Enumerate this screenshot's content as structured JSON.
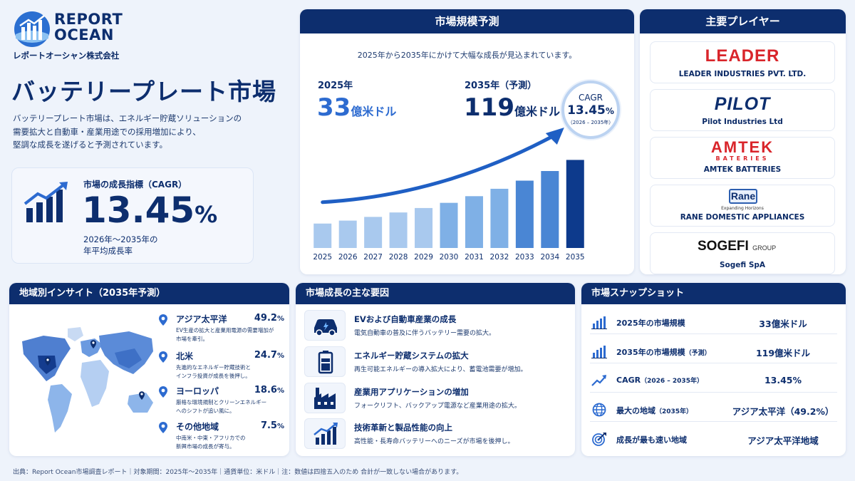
{
  "brand": {
    "name_line1": "REPORT",
    "name_line2": "OCEAN",
    "company": "レポートオーシャン株式会社"
  },
  "title": "バッテリープレート市場",
  "description": "バッテリープレート市場は、エネルギー貯蔵ソリューションの\n需要拡大と自動車・産業用途での採用増加により、\n堅調な成長を遂げると予測されています。",
  "cagr_box": {
    "label": "市場の成長指標（CAGR）",
    "value": "13.45",
    "unit": "%",
    "note": "2026年～2035年の\n年平均成長率"
  },
  "forecast": {
    "header": "市場規模予測",
    "subtitle": "2025年から2035年にかけて大幅な成長が見込まれています。",
    "start_year": "2025年",
    "start_value": "33",
    "start_unit": "億米ドル",
    "end_year": "2035年（予測）",
    "end_value": "119",
    "end_unit": "億米ドル",
    "cagr_label": "CAGR",
    "cagr_value": "13.45",
    "cagr_unit": "%",
    "cagr_range": "（2026 – 2035年）"
  },
  "chart_data": {
    "type": "bar",
    "title": "",
    "xlabel": "",
    "ylabel": "",
    "categories": [
      "2025",
      "2026",
      "2027",
      "2028",
      "2029",
      "2030",
      "2031",
      "2032",
      "2033",
      "2034",
      "2035"
    ],
    "values": [
      33,
      37,
      42,
      48,
      54,
      61,
      70,
      80,
      91,
      104,
      119
    ],
    "ylim": [
      0,
      130
    ],
    "grid": false,
    "colors": {
      "light": "#a9c9ee",
      "mid": "#7fb0e6",
      "dark": "#4a86d4",
      "highlight": "#0d3a8c",
      "arrow": "#1f5fc4"
    }
  },
  "players": {
    "header": "主要プレイヤー",
    "items": [
      {
        "logo_text": "LEADER",
        "name": "LEADER INDUSTRIES PVT. LTD."
      },
      {
        "logo_text": "PILOT",
        "name": "Pilot Industries Ltd"
      },
      {
        "logo_text": "AMTEK",
        "logo_sub": "BATERIES",
        "name": "AMTEK BATTERIES"
      },
      {
        "logo_text": "Rane",
        "logo_sub": "Expanding Horizons",
        "name": "RANE DOMESTIC APPLIANCES"
      },
      {
        "logo_text": "SOGEFI",
        "logo_sub": "GROUP",
        "name": "Sogefi SpA"
      }
    ]
  },
  "regional": {
    "header": "地域別インサイト（2035年予測）",
    "items": [
      {
        "name": "アジア太平洋",
        "value": "49.2",
        "unit": "%",
        "desc": "EV生産の拡大と産業用電源の需要増加が\n市場を牽引。"
      },
      {
        "name": "北米",
        "value": "24.7",
        "unit": "%",
        "desc": "先進的なエネルギー貯蔵技術と\nインフラ投資が成長を後押し。"
      },
      {
        "name": "ヨーロッパ",
        "value": "18.6",
        "unit": "%",
        "desc": "厳格な環境規制とクリーンエネルギー\nへのシフトが追い風に。"
      },
      {
        "name": "その他地域",
        "value": "7.5",
        "unit": "%",
        "desc": "中南米・中東・アフリカでの\n新興市場の成長が寄与。"
      }
    ]
  },
  "drivers": {
    "header": "市場成長の主な要因",
    "items": [
      {
        "icon": "car-battery-icon",
        "title": "EVおよび自動車産業の成長",
        "desc": "電気自動車の普及に伴うバッテリー需要の拡大。"
      },
      {
        "icon": "battery-icon",
        "title": "エネルギー貯蔵システムの拡大",
        "desc": "再生可能エネルギーの導入拡大により、蓄電池需要が増加。"
      },
      {
        "icon": "factory-icon",
        "title": "産業用アプリケーションの増加",
        "desc": "フォークリフト、バックアップ電源など産業用途の拡大。"
      },
      {
        "icon": "growth-chart-icon",
        "title": "技術革新と製品性能の向上",
        "desc": "高性能・長寿命バッテリーへのニーズが市場を後押し。"
      }
    ]
  },
  "snapshot": {
    "header": "市場スナップショット",
    "rows": [
      {
        "icon": "bar-chart-icon",
        "label": "2025年の市場規模",
        "label_suffix": "",
        "value": "33億米ドル"
      },
      {
        "icon": "bar-chart-icon",
        "label": "2035年の市場規模",
        "label_suffix": "（予測）",
        "value": "119億米ドル"
      },
      {
        "icon": "trend-icon",
        "label": "CAGR",
        "label_suffix": "（2026 – 2035年）",
        "value": "13.45%"
      },
      {
        "icon": "globe-icon",
        "label": "最大の地域",
        "label_suffix": "（2035年）",
        "value": "アジア太平洋（49.2%）"
      },
      {
        "icon": "target-icon",
        "label": "成長が最も速い地域",
        "label_suffix": "",
        "value": "アジア太平洋地域"
      }
    ]
  },
  "footer": "出典：Report Ocean市場調査レポート｜対象期間：2025年～2035年｜通貨単位：米ドル｜注：数値は四捨五入のため 合計が一致しない場合があります。"
}
